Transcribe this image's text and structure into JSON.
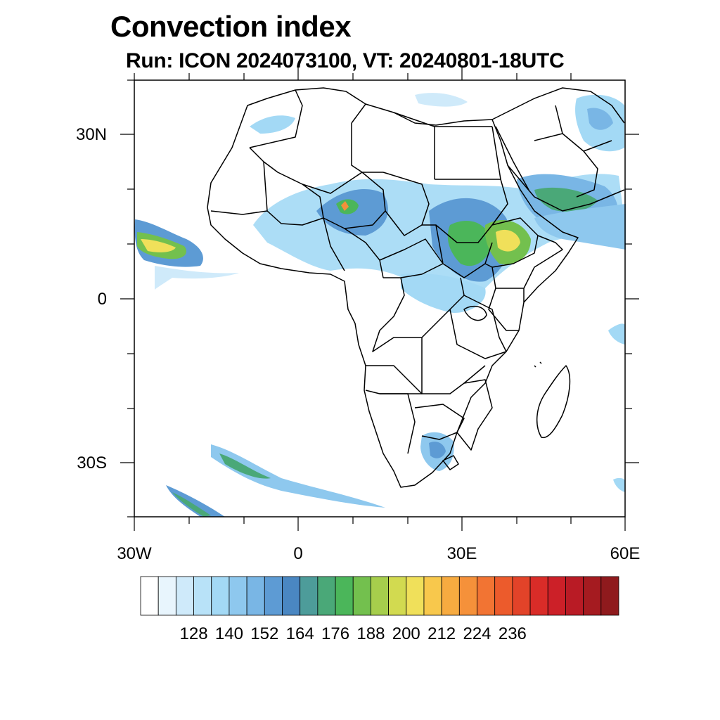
{
  "title": "Convection index",
  "subtitle": "Run: ICON 2024073100,  VT: 20240801-18UTC",
  "lat_labels": [
    "30N",
    "0",
    "30S"
  ],
  "lon_labels": [
    "30W",
    "0",
    "30E",
    "60E"
  ],
  "colorbar": {
    "labels": [
      "128",
      "140",
      "152",
      "164",
      "176",
      "188",
      "200",
      "212",
      "224",
      "236"
    ],
    "colors": [
      "#ffffff",
      "#e8f5fd",
      "#cfeafa",
      "#b8e2f8",
      "#a3d9f5",
      "#8ec8ee",
      "#79b6e5",
      "#5d9bd4",
      "#4a87c2",
      "#4d9c9a",
      "#4aa878",
      "#4bb65a",
      "#73c04e",
      "#a6ce4c",
      "#d2da50",
      "#f0e05a",
      "#f8c84c",
      "#f7ab40",
      "#f5913a",
      "#f27433",
      "#ec5b2c",
      "#e24329",
      "#d92c28",
      "#cc2028",
      "#b91b25",
      "#a51b20",
      "#8f1a1d"
    ]
  }
}
